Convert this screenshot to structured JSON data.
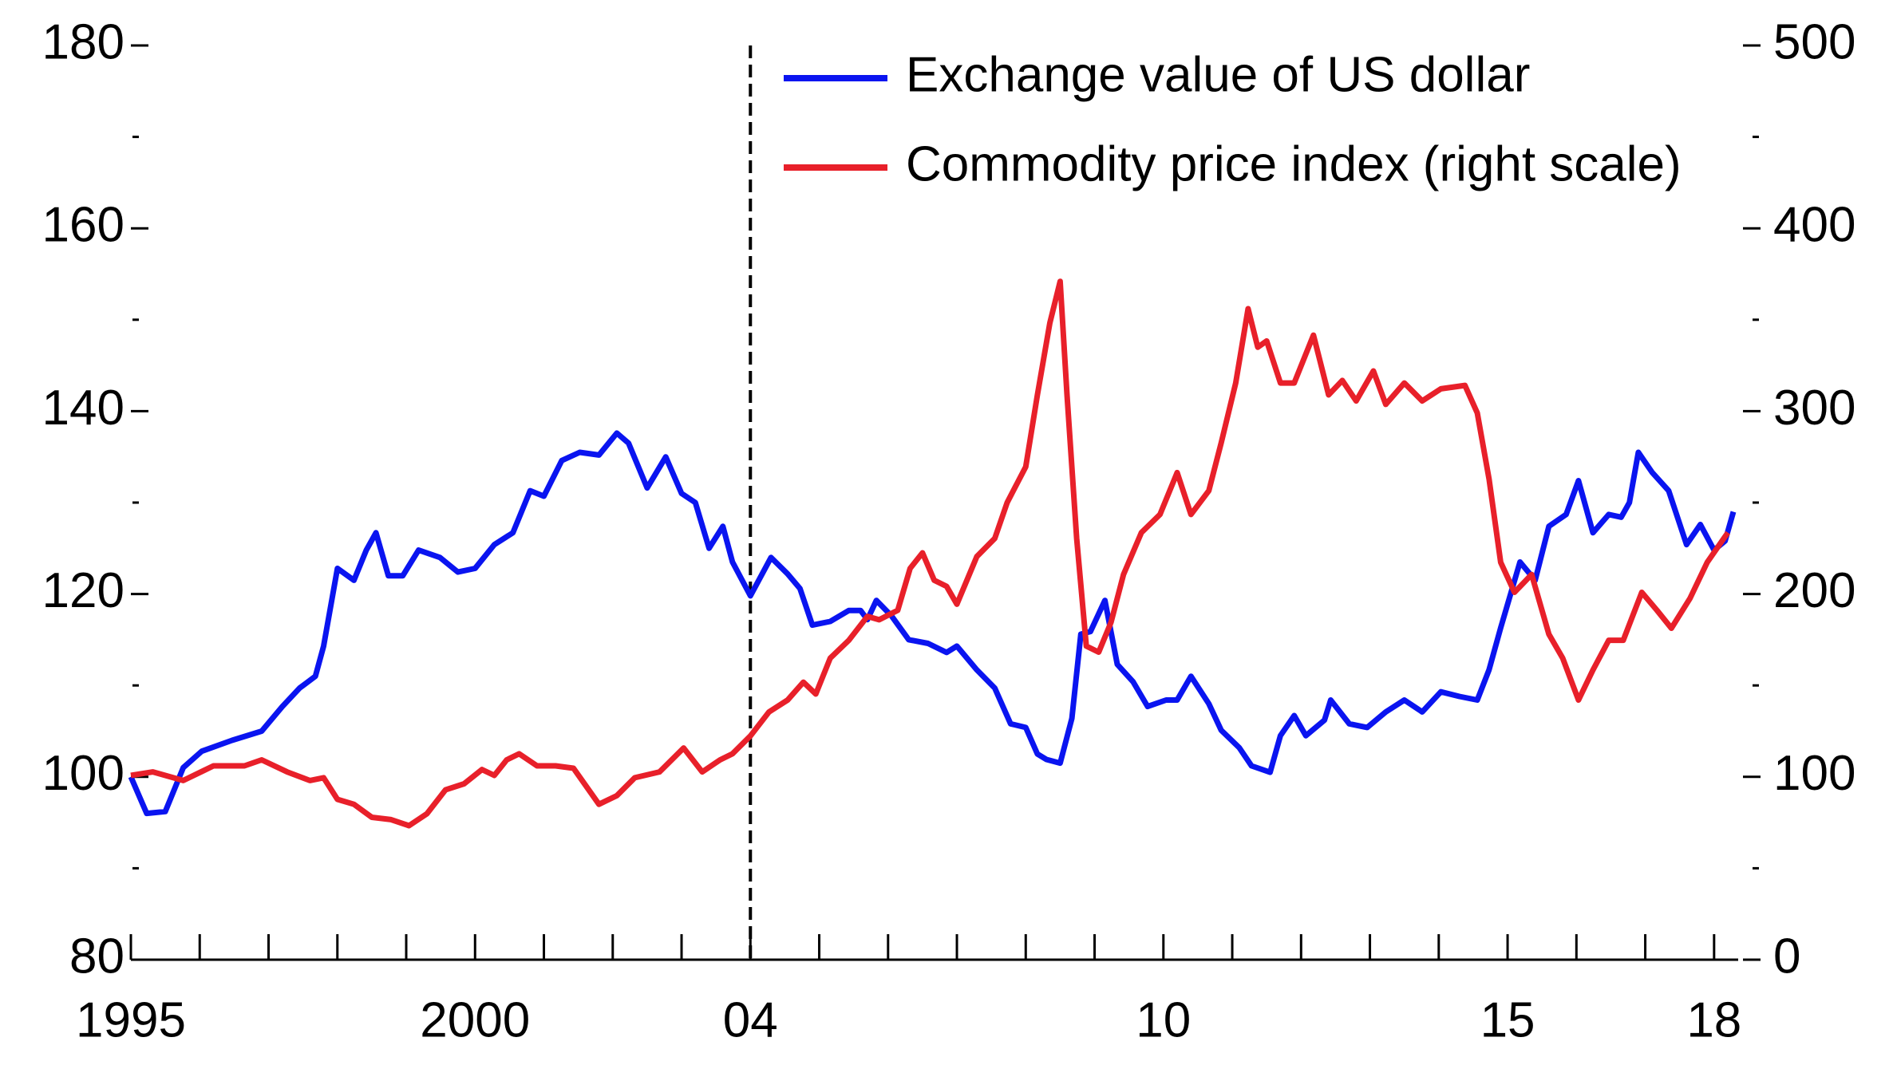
{
  "chart_data": {
    "type": "line",
    "xlim": [
      1995,
      2018.35
    ],
    "xticks": [
      1995,
      2000,
      {
        "value": 2004,
        "label": "04"
      },
      {
        "value": 2010,
        "label": "10"
      },
      {
        "value": 2015,
        "label": "15"
      },
      {
        "value": 2018,
        "label": "18"
      }
    ],
    "xminorticks": [
      1996,
      1997,
      1998,
      1999,
      2001,
      2002,
      2003,
      2005,
      2006,
      2007,
      2008,
      2009,
      2011,
      2012,
      2013,
      2014,
      2016,
      2017
    ],
    "ylim": [
      80,
      180
    ],
    "yticks": [
      80,
      100,
      120,
      140,
      160,
      180
    ],
    "yminorticks": [
      90,
      110,
      130,
      150,
      170
    ],
    "y2lim": [
      0,
      500
    ],
    "y2ticks": [
      0,
      100,
      200,
      300,
      400,
      500
    ],
    "y2minorticks": [
      50,
      150,
      250,
      350,
      450
    ],
    "vline": 2004,
    "legend": "upper right",
    "series": [
      {
        "name": "Exchange value of US dollar",
        "color": "#0a14f0",
        "x": [
          1995.0,
          1995.23,
          1995.5,
          1995.76,
          1996.03,
          1996.47,
          1996.9,
          1997.2,
          1997.45,
          1997.68,
          1997.8,
          1998.0,
          1998.24,
          1998.42,
          1998.56,
          1998.74,
          1998.95,
          1999.18,
          1999.49,
          1999.75,
          2000.0,
          2000.28,
          2000.55,
          2000.8,
          2001.0,
          2001.26,
          2001.52,
          2001.8,
          2002.06,
          2002.23,
          2002.5,
          2002.77,
          2003.0,
          2003.2,
          2003.4,
          2003.6,
          2003.74,
          2004.0,
          2004.3,
          2004.54,
          2004.72,
          2004.9,
          2005.16,
          2005.43,
          2005.6,
          2005.7,
          2005.83,
          2006.05,
          2006.3,
          2006.58,
          2006.85,
          2007.0,
          2007.29,
          2007.55,
          2007.78,
          2008.0,
          2008.17,
          2008.3,
          2008.5,
          2008.67,
          2008.8,
          2008.94,
          2009.15,
          2009.33,
          2009.56,
          2009.77,
          2010.04,
          2010.2,
          2010.4,
          2010.66,
          2010.84,
          2011.1,
          2011.28,
          2011.55,
          2011.7,
          2011.9,
          2012.07,
          2012.34,
          2012.43,
          2012.7,
          2012.96,
          2013.23,
          2013.5,
          2013.76,
          2014.03,
          2014.3,
          2014.56,
          2014.73,
          2014.9,
          2015.18,
          2015.4,
          2015.6,
          2015.85,
          2016.03,
          2016.24,
          2016.47,
          2016.65,
          2016.77,
          2016.9,
          2017.1,
          2017.34,
          2017.6,
          2017.8,
          2018.0,
          2018.16,
          2018.28
        ],
        "values": [
          100,
          96,
          96.2,
          101,
          102.8,
          104,
          105,
          107.7,
          109.7,
          111,
          114.3,
          122.8,
          121.5,
          124.8,
          126.7,
          122,
          122,
          124.8,
          124,
          122.4,
          122.8,
          125.4,
          126.7,
          131.3,
          130.7,
          134.6,
          135.5,
          135.2,
          137.6,
          136.5,
          131.6,
          135,
          131,
          130,
          125,
          127.4,
          123.5,
          119.8,
          124,
          122.2,
          120.6,
          116.6,
          117,
          118.2,
          118.2,
          117.2,
          119.3,
          117.6,
          115,
          114.6,
          113.6,
          114.3,
          111.7,
          109.7,
          105.8,
          105.4,
          102.5,
          101.9,
          101.5,
          106.4,
          115.6,
          115.9,
          119.3,
          112.3,
          110.4,
          107.7,
          108.4,
          108.4,
          111,
          108,
          105.1,
          103.2,
          101.2,
          100.5,
          104.5,
          106.7,
          104.5,
          106.2,
          108.4,
          105.8,
          105.4,
          107.1,
          108.4,
          107.1,
          109.3,
          108.8,
          108.4,
          111.7,
          116.3,
          123.5,
          121.5,
          127.4,
          128.7,
          132.4,
          126.7,
          128.7,
          128.4,
          130,
          135.5,
          133.3,
          131.3,
          125.4,
          127.6,
          124.8,
          125.8,
          129
        ]
      },
      {
        "name": "Commodity price index (right scale)",
        "color": "#e8202a",
        "axis": "y2",
        "x": [
          1995.0,
          1995.32,
          1995.76,
          1996.2,
          1996.65,
          1996.9,
          1997.27,
          1997.6,
          1997.8,
          1998.0,
          1998.24,
          1998.5,
          1998.78,
          1999.04,
          1999.3,
          1999.57,
          1999.84,
          2000.1,
          2000.28,
          2000.46,
          2000.64,
          2000.9,
          2001.17,
          2001.43,
          2001.8,
          2002.06,
          2002.32,
          2002.68,
          2003.03,
          2003.3,
          2003.56,
          2003.74,
          2004.0,
          2004.27,
          2004.54,
          2004.77,
          2004.95,
          2005.16,
          2005.43,
          2005.7,
          2005.87,
          2006.14,
          2006.32,
          2006.5,
          2006.67,
          2006.85,
          2007.0,
          2007.29,
          2007.55,
          2007.73,
          2008.0,
          2008.17,
          2008.35,
          2008.5,
          2008.6,
          2008.74,
          2008.88,
          2009.06,
          2009.24,
          2009.42,
          2009.68,
          2009.95,
          2010.2,
          2010.4,
          2010.66,
          2010.84,
          2011.05,
          2011.23,
          2011.37,
          2011.5,
          2011.7,
          2011.9,
          2012.18,
          2012.4,
          2012.6,
          2012.8,
          2013.05,
          2013.23,
          2013.5,
          2013.76,
          2014.03,
          2014.38,
          2014.56,
          2014.73,
          2014.9,
          2015.1,
          2015.35,
          2015.6,
          2015.8,
          2016.03,
          2016.24,
          2016.47,
          2016.68,
          2016.95,
          2017.17,
          2017.38,
          2017.65,
          2017.9,
          2018.2
        ],
        "values": [
          100.8,
          102.7,
          98,
          106,
          106,
          109.3,
          102.7,
          98,
          99.5,
          87.7,
          85,
          77.9,
          76.6,
          73.3,
          79.8,
          92.9,
          96.2,
          104,
          100.8,
          109.3,
          112.6,
          106,
          106,
          104.7,
          85,
          89.7,
          99.5,
          102.7,
          115.8,
          102.7,
          109.3,
          112.6,
          122.4,
          135.5,
          142,
          151.8,
          145.3,
          164.9,
          174.7,
          187.8,
          185.9,
          191.1,
          214,
          222.5,
          207.5,
          204.2,
          194.4,
          220.5,
          230.4,
          250,
          269.6,
          308.9,
          348.2,
          371,
          308.9,
          230.4,
          171.5,
          168.2,
          184.6,
          210.7,
          233.6,
          243.5,
          266.4,
          243.5,
          256.5,
          282.7,
          315.4,
          356,
          335,
          338.4,
          315.4,
          315.4,
          341.6,
          308.9,
          316.8,
          305.6,
          322,
          303.7,
          315.4,
          305.6,
          312.2,
          314.1,
          299,
          263,
          217.3,
          200.9,
          210.7,
          178,
          164.9,
          142,
          158.4,
          174.7,
          174.7,
          200.9,
          191.1,
          181.3,
          197.6,
          217.3,
          233.6
        ]
      }
    ]
  }
}
